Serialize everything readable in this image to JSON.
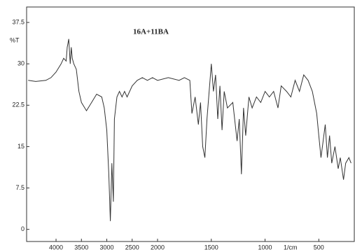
{
  "chart_data": {
    "type": "line",
    "annotation": "16A+11BA",
    "y_label": "%T",
    "x_label": "1/cm",
    "x": [
      4550,
      4400,
      4200,
      4100,
      4000,
      3900,
      3850,
      3800,
      3780,
      3750,
      3720,
      3700,
      3680,
      3650,
      3600,
      3550,
      3500,
      3400,
      3300,
      3200,
      3100,
      3050,
      3000,
      2960,
      2930,
      2900,
      2870,
      2850,
      2800,
      2750,
      2700,
      2650,
      2600,
      2500,
      2400,
      2300,
      2200,
      2100,
      2000,
      1900,
      1800,
      1750,
      1700,
      1680,
      1650,
      1620,
      1600,
      1580,
      1560,
      1540,
      1520,
      1500,
      1480,
      1460,
      1440,
      1420,
      1400,
      1380,
      1350,
      1300,
      1260,
      1240,
      1220,
      1200,
      1180,
      1150,
      1120,
      1080,
      1040,
      1000,
      960,
      920,
      880,
      850,
      800,
      760,
      720,
      680,
      640,
      600,
      560,
      520,
      500,
      480,
      460,
      440,
      420,
      400,
      380,
      350,
      320,
      300,
      270,
      250,
      220,
      200
    ],
    "series": [
      {
        "color": "#333333",
        "values": [
          27,
          26.8,
          27,
          27.5,
          28.5,
          30,
          31,
          30.5,
          33,
          34.5,
          30,
          33,
          31,
          30,
          29,
          25,
          23,
          21.5,
          23,
          24.5,
          24,
          22,
          18,
          10,
          1.5,
          12,
          5,
          20,
          24,
          25,
          24,
          25,
          24,
          26,
          27,
          27.5,
          27,
          27.5,
          27,
          27.5,
          27,
          27.5,
          27,
          21,
          24,
          19,
          23,
          15,
          13,
          20,
          25,
          30,
          25,
          28,
          20,
          26,
          18,
          25,
          22,
          23,
          16,
          20,
          10,
          22,
          17,
          24,
          22,
          24,
          23,
          25,
          24,
          25,
          22,
          26,
          25,
          24,
          27,
          25,
          28,
          27,
          25,
          21,
          17,
          13,
          16,
          19,
          13,
          17,
          12,
          15,
          11,
          13,
          9,
          12,
          13,
          12
        ]
      }
    ],
    "xlim": [
      4580,
      170
    ],
    "x_break": 2000,
    "xticks": [
      4000,
      3500,
      3000,
      2500,
      2000,
      1500,
      1000,
      500
    ],
    "ylim": [
      -2.2,
      40.3
    ],
    "yticks": [
      0,
      7.5,
      15,
      22.5,
      30,
      37.5
    ]
  }
}
